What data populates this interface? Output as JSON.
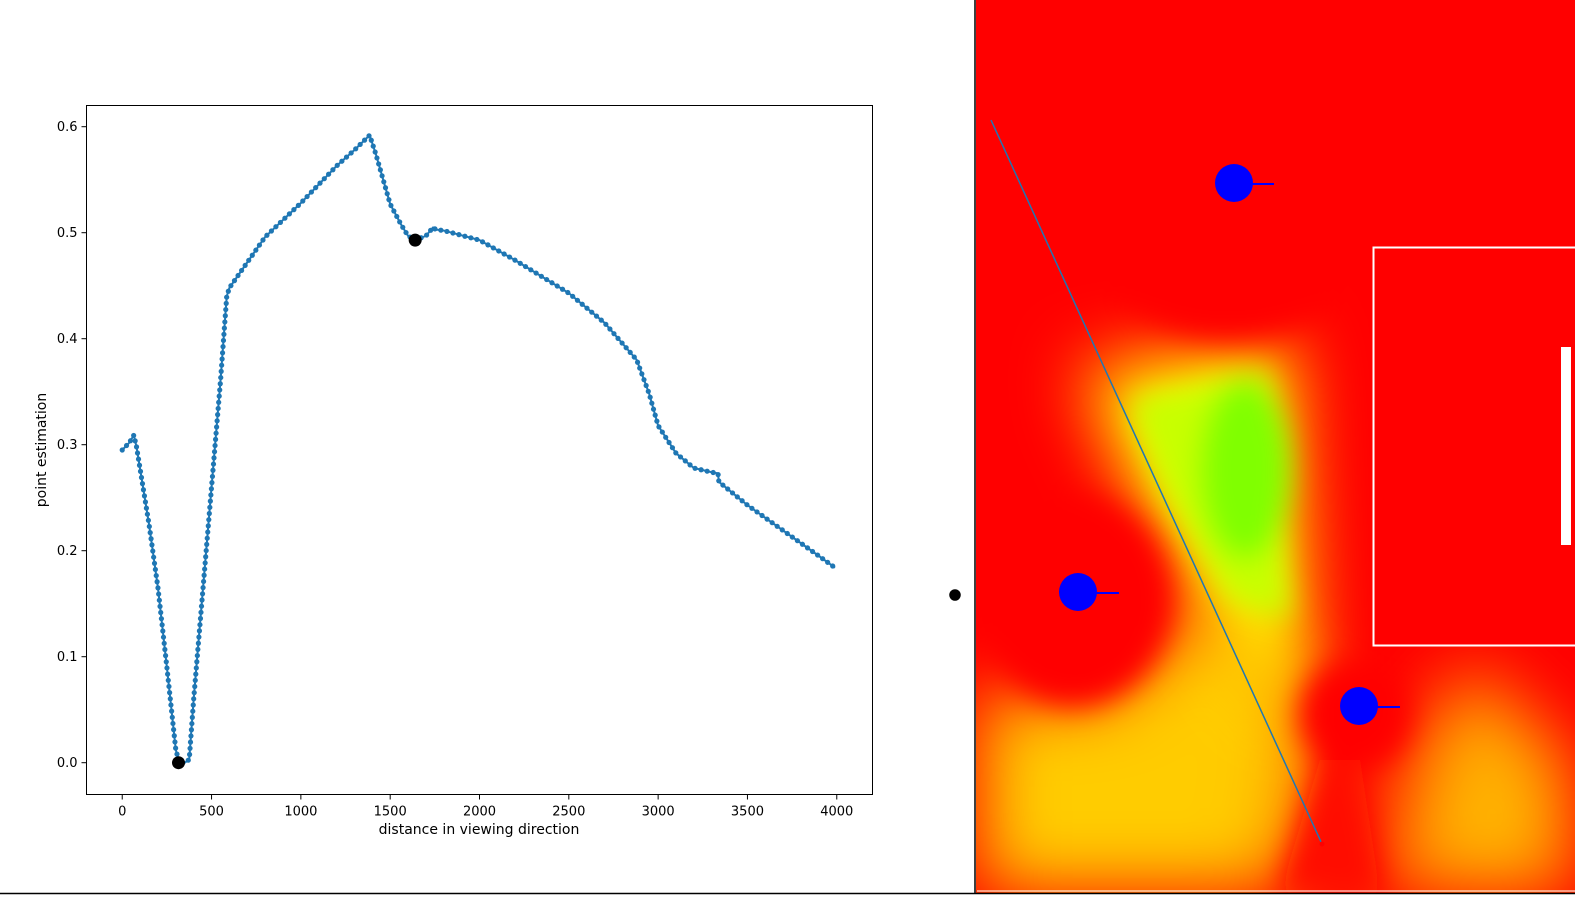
{
  "chart_data": {
    "type": "line",
    "title": "",
    "xlabel": "distance in viewing direction",
    "ylabel": "point estimation",
    "xlim": [
      -200,
      4200
    ],
    "ylim": [
      -0.03,
      0.62
    ],
    "xticks": [
      0,
      500,
      1000,
      1500,
      2000,
      2500,
      3000,
      3500,
      4000
    ],
    "yticks": [
      0.0,
      0.1,
      0.2,
      0.3,
      0.4,
      0.5,
      0.6
    ],
    "xtick_labels": [
      "0",
      "500",
      "1000",
      "1500",
      "2000",
      "2500",
      "3000",
      "3500",
      "4000"
    ],
    "ytick_labels": [
      "0.0",
      "0.1",
      "0.2",
      "0.3",
      "0.4",
      "0.5",
      "0.6"
    ],
    "grid": false,
    "series": [
      {
        "name": "point estimation",
        "color": "#1f77b4",
        "marker": "dot",
        "knots": [
          [
            0,
            0.295
          ],
          [
            40,
            0.302
          ],
          [
            65,
            0.309
          ],
          [
            80,
            0.298
          ],
          [
            150,
            0.225
          ],
          [
            200,
            0.165
          ],
          [
            250,
            0.09
          ],
          [
            300,
            0.012
          ],
          [
            320,
            0.0
          ],
          [
            350,
            0.0
          ],
          [
            375,
            0.003
          ],
          [
            400,
            0.06
          ],
          [
            450,
            0.16
          ],
          [
            500,
            0.26
          ],
          [
            550,
            0.36
          ],
          [
            585,
            0.44
          ],
          [
            600,
            0.448
          ],
          [
            700,
            0.472
          ],
          [
            800,
            0.496
          ],
          [
            1000,
            0.528
          ],
          [
            1200,
            0.563
          ],
          [
            1300,
            0.578
          ],
          [
            1385,
            0.592
          ],
          [
            1420,
            0.574
          ],
          [
            1500,
            0.527
          ],
          [
            1560,
            0.508
          ],
          [
            1600,
            0.497
          ],
          [
            1640,
            0.493
          ],
          [
            1700,
            0.497
          ],
          [
            1740,
            0.505
          ],
          [
            1755,
            0.503
          ],
          [
            1800,
            0.502
          ],
          [
            2000,
            0.493
          ],
          [
            2200,
            0.474
          ],
          [
            2500,
            0.443
          ],
          [
            2700,
            0.415
          ],
          [
            2880,
            0.38
          ],
          [
            2950,
            0.348
          ],
          [
            3000,
            0.318
          ],
          [
            3100,
            0.292
          ],
          [
            3200,
            0.278
          ],
          [
            3300,
            0.274
          ],
          [
            3335,
            0.273
          ],
          [
            3340,
            0.265
          ],
          [
            3500,
            0.243
          ],
          [
            3700,
            0.219
          ],
          [
            3900,
            0.195
          ],
          [
            3990,
            0.184
          ]
        ]
      }
    ],
    "highlight_points": [
      {
        "x": 315,
        "y": 0.0,
        "color": "#000000"
      },
      {
        "x": 1640,
        "y": 0.493,
        "color": "#000000"
      }
    ]
  },
  "map": {
    "axis_color": "#000000",
    "agents": [
      {
        "id": "agent-1",
        "color": "#0000ff"
      },
      {
        "id": "agent-2",
        "color": "#0000ff"
      },
      {
        "id": "agent-3",
        "color": "#0000ff"
      }
    ],
    "heat_colors": {
      "low": "#ff0000",
      "mid": "#ffff00",
      "high": "#80ff00"
    },
    "obstacle_outline": "#ffffff",
    "ray_color": "#1f77b4",
    "ray_end_color": "#ff0000",
    "observer_color": "#000000"
  }
}
